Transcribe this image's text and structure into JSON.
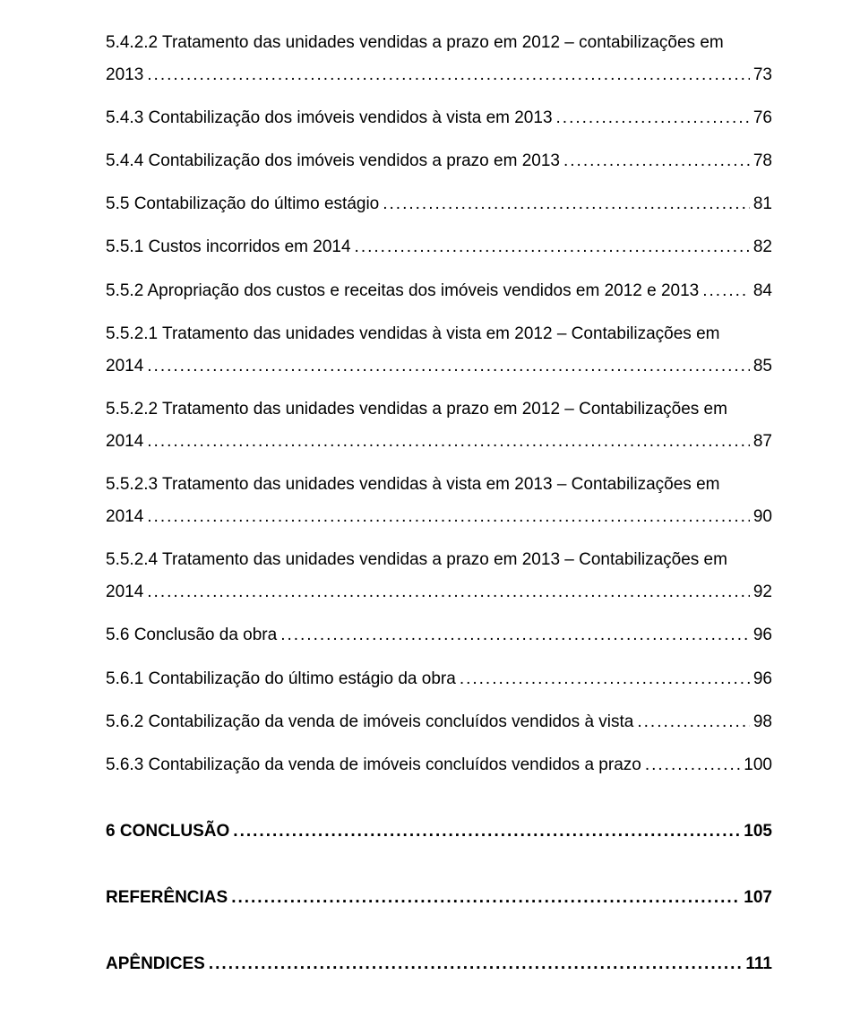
{
  "text_color": "#000000",
  "background_color": "#ffffff",
  "font_family": "Arial, Helvetica, sans-serif",
  "font_size_pt": 14,
  "entries": {
    "e1": {
      "line1": "5.4.2.2 Tratamento das unidades vendidas a prazo em 2012 – contabilizações em",
      "line2": "2013",
      "page": "73"
    },
    "e2": {
      "label": "5.4.3 Contabilização dos imóveis vendidos à vista em 2013",
      "page": "76"
    },
    "e3": {
      "label": "5.4.4 Contabilização dos imóveis vendidos a prazo em 2013",
      "page": "78"
    },
    "e4": {
      "label": "5.5 Contabilização do último estágio",
      "page": "81"
    },
    "e5": {
      "label": "5.5.1 Custos incorridos em 2014",
      "page": "82"
    },
    "e6": {
      "label": "5.5.2 Apropriação dos custos e receitas dos imóveis vendidos em 2012 e 2013",
      "page": "84"
    },
    "e7": {
      "line1": "5.5.2.1 Tratamento das unidades vendidas à vista em 2012 – Contabilizações em",
      "line2": "2014",
      "page": "85"
    },
    "e8": {
      "line1": "5.5.2.2 Tratamento das unidades vendidas a prazo em 2012 – Contabilizações em",
      "line2": "2014",
      "page": "87"
    },
    "e9": {
      "line1": "5.5.2.3 Tratamento das unidades vendidas à vista em 2013 – Contabilizações em",
      "line2": "2014",
      "page": "90"
    },
    "e10": {
      "line1": "5.5.2.4 Tratamento das unidades vendidas a prazo em 2013 – Contabilizações em",
      "line2": "2014",
      "page": "92"
    },
    "e11": {
      "label": "5.6 Conclusão da obra",
      "page": "96"
    },
    "e12": {
      "label": "5.6.1 Contabilização do último estágio da obra",
      "page": "96"
    },
    "e13": {
      "label": "5.6.2 Contabilização da venda de imóveis concluídos vendidos à vista",
      "page": "98"
    },
    "e14": {
      "label": "5.6.3 Contabilização da venda de imóveis concluídos vendidos a prazo",
      "page": "100"
    },
    "e15": {
      "label": "6 CONCLUSÃO",
      "page": "105"
    },
    "e16": {
      "label": "REFERÊNCIAS",
      "page": "107"
    },
    "e17": {
      "label": "APÊNDICES",
      "page": "111"
    }
  }
}
